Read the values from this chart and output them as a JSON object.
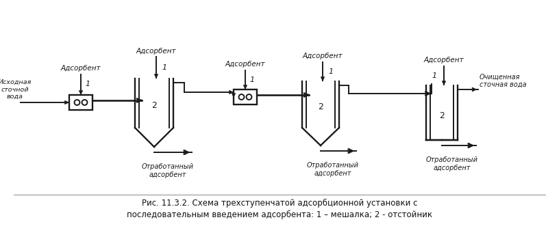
{
  "title_line1": "Рис. 11.3.2. Схема трехступенчатой адсорбционной установки с",
  "title_line2": "последовательным введением адсорбента: 1 – мешалка; 2 - отстойник",
  "bg_color": "#ffffff",
  "line_color": "#1a1a1a",
  "label_adsorbent": "Адсорбент",
  "label_source": "Исходная\nсточной\nвода",
  "label_clean": "Очищенная\nсточная вода",
  "label_waste": "Отработанный\nадсорбент",
  "label_1": "1",
  "label_2": "2",
  "figsize": [
    8.16,
    3.47
  ],
  "dpi": 100
}
